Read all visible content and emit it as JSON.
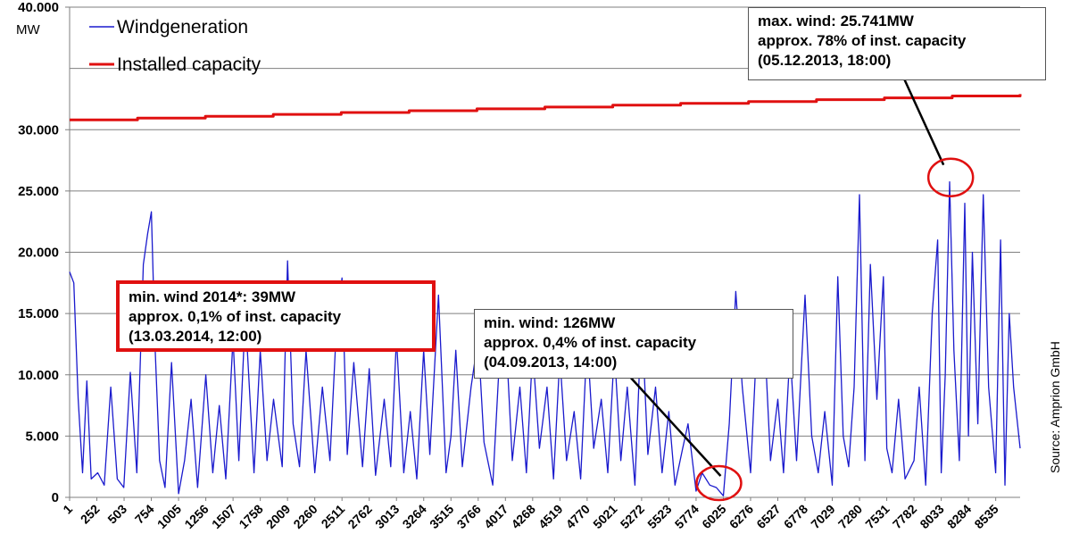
{
  "chart_data": {
    "type": "line",
    "unit_label": "MW",
    "ylim": [
      0,
      40000
    ],
    "y_ticks": [
      "0",
      "5.000",
      "10.000",
      "15.000",
      "20.000",
      "25.000",
      "30.000",
      "40.000"
    ],
    "y_tick_values": [
      0,
      5000,
      10000,
      15000,
      20000,
      25000,
      30000,
      40000
    ],
    "x_range": [
      1,
      8760
    ],
    "x_ticks": [
      "1",
      "252",
      "503",
      "754",
      "1005",
      "1256",
      "1507",
      "1758",
      "2009",
      "2260",
      "2511",
      "2762",
      "3013",
      "3264",
      "3515",
      "3766",
      "4017",
      "4268",
      "4519",
      "4770",
      "5021",
      "5272",
      "5523",
      "5774",
      "6025",
      "6276",
      "6527",
      "6778",
      "7029",
      "7280",
      "7531",
      "7782",
      "8033",
      "8284",
      "8535"
    ],
    "x_tick_values": [
      1,
      252,
      503,
      754,
      1005,
      1256,
      1507,
      1758,
      2009,
      2260,
      2511,
      2762,
      3013,
      3264,
      3515,
      3766,
      4017,
      4268,
      4519,
      4770,
      5021,
      5272,
      5523,
      5774,
      6025,
      6276,
      6527,
      6778,
      7029,
      7280,
      7531,
      7782,
      8033,
      8284,
      8535
    ],
    "grid": true,
    "legend_position": "top-left",
    "series": [
      {
        "name": "Windgeneration",
        "color": "#1a1acd",
        "x": [
          1,
          40,
          80,
          120,
          160,
          200,
          260,
          320,
          380,
          440,
          500,
          560,
          620,
          680,
          720,
          754,
          790,
          830,
          880,
          940,
          1005,
          1060,
          1120,
          1180,
          1256,
          1320,
          1380,
          1440,
          1507,
          1560,
          1620,
          1700,
          1758,
          1820,
          1880,
          1960,
          2009,
          2060,
          2120,
          2180,
          2260,
          2330,
          2400,
          2460,
          2511,
          2560,
          2620,
          2700,
          2762,
          2820,
          2900,
          2960,
          3013,
          3080,
          3140,
          3200,
          3264,
          3320,
          3400,
          3470,
          3515,
          3560,
          3620,
          3700,
          3766,
          3820,
          3900,
          3960,
          4017,
          4080,
          4150,
          4210,
          4268,
          4330,
          4400,
          4460,
          4519,
          4580,
          4650,
          4710,
          4770,
          4830,
          4900,
          4960,
          5021,
          5080,
          5140,
          5210,
          5272,
          5330,
          5400,
          5460,
          5523,
          5580,
          5650,
          5700,
          5774,
          5830,
          5900,
          5960,
          6025,
          6080,
          6140,
          6200,
          6276,
          6330,
          6400,
          6460,
          6527,
          6580,
          6640,
          6700,
          6778,
          6840,
          6900,
          6960,
          7029,
          7080,
          7130,
          7180,
          7230,
          7280,
          7330,
          7380,
          7440,
          7500,
          7531,
          7580,
          7640,
          7700,
          7782,
          7830,
          7890,
          7950,
          8000,
          8033,
          8070,
          8110,
          8150,
          8200,
          8250,
          8284,
          8320,
          8370,
          8420,
          8470,
          8535,
          8580,
          8620,
          8660,
          8700,
          8760
        ],
        "values": [
          18400,
          17500,
          8000,
          2000,
          9500,
          1500,
          2000,
          1000,
          9000,
          1500,
          800,
          10200,
          2000,
          19000,
          21500,
          23300,
          12000,
          3000,
          800,
          11000,
          300,
          3000,
          8000,
          800,
          10000,
          2000,
          7500,
          1500,
          13000,
          3000,
          15000,
          2000,
          12000,
          3000,
          8000,
          2500,
          19300,
          6000,
          2500,
          12000,
          2000,
          9000,
          3000,
          14000,
          17900,
          3500,
          11000,
          2500,
          10500,
          1800,
          8000,
          2500,
          13000,
          2000,
          7000,
          1500,
          12000,
          3500,
          16500,
          2000,
          5000,
          12000,
          2500,
          9000,
          13000,
          4500,
          1000,
          11000,
          14000,
          3000,
          9000,
          2000,
          12000,
          4000,
          9000,
          1500,
          11500,
          3000,
          7000,
          1500,
          13000,
          4000,
          8000,
          2000,
          12000,
          3000,
          9000,
          1000,
          15000,
          3500,
          9000,
          2000,
          7000,
          1000,
          4000,
          6000,
          500,
          2000,
          1000,
          800,
          126,
          6000,
          16800,
          9000,
          2000,
          12000,
          14000,
          3000,
          8000,
          2000,
          12000,
          3000,
          16500,
          5000,
          2000,
          7000,
          1000,
          18000,
          5000,
          2500,
          9000,
          24700,
          3000,
          19000,
          8000,
          18000,
          4000,
          2000,
          8000,
          1500,
          3000,
          9000,
          1000,
          15000,
          21000,
          2000,
          10000,
          25741,
          12000,
          3000,
          24000,
          5000,
          20000,
          6000,
          24700,
          9000,
          2000,
          21000,
          1000,
          15000,
          9000,
          4000
        ]
      },
      {
        "name": "Installed capacity",
        "color": "#e01010",
        "x": [
          1,
          8760
        ],
        "values": [
          30800,
          32900
        ]
      }
    ],
    "annotations": [
      {
        "id": "max",
        "lines": [
          "max. wind: 25.741MW",
          "approx. 78% of inst. capacity",
          "(05.12.2013, 18:00)"
        ],
        "target_x": 8120,
        "target_y": 25741
      },
      {
        "id": "min2014",
        "lines": [
          "min. wind 2014*: 39MW",
          "approx.  0,1% of  inst. capacity",
          "(13.03.2014, 12:00)"
        ]
      },
      {
        "id": "min2013",
        "lines": [
          "min. wind: 126MW",
          "approx.  0,4% of  inst. capacity",
          "(04.09.2013, 14:00)"
        ],
        "target_x": 6025,
        "target_y": 800
      }
    ],
    "source_note": "Source: Amprion GmbH"
  }
}
